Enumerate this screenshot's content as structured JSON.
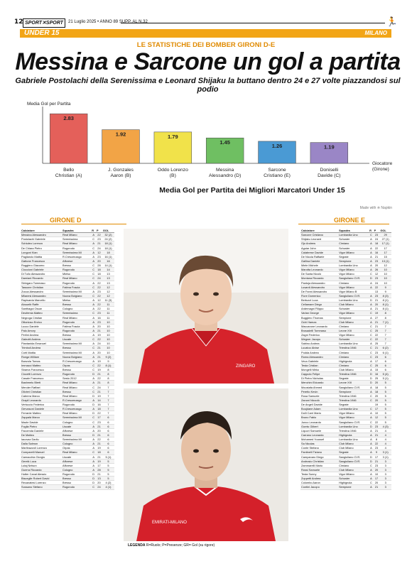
{
  "header": {
    "page_number": "12",
    "logo_text": "SPORT✕SPORT",
    "date_line": "21 Luglio 2025 • ANNO 89 SUPP. AL N.32",
    "section": "UNDER 15",
    "city": "MILANO"
  },
  "article": {
    "kicker": "LE STATISTICHE DEI BOMBER GIRONI D-E",
    "headline": "Messina e Sarcone un gol a partita",
    "subhead": "Gabriele Postolachi della Serenissima e Leonard Shijaku la buttano dentro 24 e 27 volte piazzandosi sul podio"
  },
  "chart_data": {
    "type": "bar",
    "title": "Media Gol per Partita dei Migliori Marcatori Under 15",
    "ylabel": "Media Gol per Partita",
    "xlabel": "Giocatore (Girone)",
    "categories": [
      "Bello Christian (A)",
      "J. Gonzales Aaron (B)",
      "Oddo Lorenzo (B)",
      "Messina Alessandro (D)",
      "Sarcone Cristiano (E)",
      "Doniselli Davide (C)"
    ],
    "values": [
      2.83,
      1.92,
      1.79,
      1.45,
      1.26,
      1.19
    ],
    "value_labels": [
      "2.83",
      "1.92",
      "1.79",
      "1.45",
      "1.26",
      "1.19"
    ],
    "colors": [
      "#e4605a",
      "#f2a446",
      "#f1e24a",
      "#6fbf62",
      "#4a9ad4",
      "#9a86c6"
    ],
    "ylim": [
      0,
      3
    ],
    "grid": false,
    "legend": "none",
    "credit": "Made with ❈ Napkin"
  },
  "girone_d": {
    "title": "GIRONE D",
    "headers": [
      "Calciatore",
      "Squadra",
      "R",
      "P",
      "GOL"
    ],
    "rows": [
      [
        "Messina Alessandro",
        "Real Milano",
        "A",
        "22",
        "32 (2)"
      ],
      [
        "Postolachi Gabriele",
        "Serenissima",
        "C",
        "23",
        "24 (2)"
      ],
      [
        "Schiuleo Lorenzo",
        "Real Milano",
        "A",
        "21",
        "18 (1)"
      ],
      [
        "De Chiara Pietro",
        "Rugorodo",
        "C",
        "24",
        "18 (1)"
      ],
      [
        "Longoni Kian",
        "Serenissima MI",
        "A",
        "12",
        "18"
      ],
      [
        "Pagliarolo Mattia",
        "R.Crescenzago",
        "A",
        "23",
        "16 (1)"
      ],
      [
        "Gattone Francesco",
        "Afforese",
        "A",
        "20",
        "16"
      ],
      [
        "Ruggiero Giacomo",
        "Bresso",
        "C",
        "28",
        "14 (1)"
      ],
      [
        "Cioccioni Gabriele",
        "Rugorodo",
        "C",
        "18",
        "14"
      ],
      [
        "Di Tullo Alessandro",
        "Mielso",
        "C",
        "18",
        "13"
      ],
      [
        "Damiani Riccardo",
        "Real Milano",
        "C",
        "24",
        "13"
      ],
      [
        "Stringaro Tommaso",
        "Rugorodo",
        "A",
        "22",
        "13"
      ],
      [
        "Tassone Christian",
        "Fatima Foscia",
        "C",
        "22",
        "12"
      ],
      [
        "Zocca Alessandro",
        "Serenissima MI",
        "A",
        "23",
        "12"
      ],
      [
        "Milanesi Alessandro",
        "Nuova Bolgiano",
        "C",
        "22",
        "12"
      ],
      [
        "Rapisarda Marcello",
        "Mielso",
        "A",
        "12",
        "11 (3)"
      ],
      [
        "Abouelb Raffe",
        "Bresso",
        "A",
        "22",
        "11"
      ],
      [
        "Santhagoi Oscar",
        "Cologno",
        "A",
        "22",
        "11"
      ],
      [
        "Deufemia Matteo",
        "Serenissima",
        "C",
        "23",
        "11"
      ],
      [
        "Negroga Cristian",
        "Real Milano",
        "A",
        "16",
        "11"
      ],
      [
        "Ottonioso Enrico",
        "Rugorodo",
        "A",
        "23",
        "10"
      ],
      [
        "Lucco Daniele",
        "Fatima Foscia",
        "A",
        "20",
        "10"
      ],
      [
        "Palo Amory",
        "Rugorodo",
        "A",
        "21",
        "10"
      ],
      [
        "Perlini Andrea",
        "Bresso",
        "A",
        "19",
        "10"
      ],
      [
        "Galeotti Andrea",
        "Liscate",
        "C",
        "22",
        "10"
      ],
      [
        "Piantanida Emanuel",
        "Serenissima MI",
        "A",
        "24",
        "10"
      ],
      [
        "Trimboli Andrea",
        "Bresso",
        "C",
        "21",
        "10"
      ],
      [
        "Corti Mattia",
        "Serenissima MI",
        "A",
        "20",
        "10"
      ],
      [
        "Ronga William",
        "Nuova Bolgiano",
        "A",
        "21",
        "9 (2)"
      ],
      [
        "Banzola Tomas",
        "R.Crescenzago",
        "A",
        "19",
        "9"
      ],
      [
        "Immacci Matteo",
        "Orpas",
        "C",
        "22",
        "8 (1)"
      ],
      [
        "Sbarna Francesco",
        "Bresso",
        "C",
        "19",
        "8"
      ],
      [
        "Ciocetti Lorenzo",
        "Rugorodo",
        "D",
        "21",
        "8"
      ],
      [
        "Casale Francesco",
        "Sesto 2012",
        "A",
        "22",
        "8"
      ],
      [
        "Bashmelu Blerti",
        "Real Milano",
        "A",
        "21",
        "8"
      ],
      [
        "Mender Raffaei",
        "Real Milano",
        "C",
        "24",
        "7"
      ],
      [
        "Olivieri Christian",
        "Bresso",
        "C",
        "21",
        "7"
      ],
      [
        "Cabrera Marco",
        "Real Milano",
        "D",
        "19",
        "7"
      ],
      [
        "Grapil Leonardo",
        "R.Crescenzago",
        "A",
        "14",
        "7"
      ],
      [
        "Vertuccio Federico",
        "Rugorodo",
        "D",
        "16",
        "7"
      ],
      [
        "Gervasoni Daniele",
        "R.Crescenzago",
        "A",
        "18",
        "7"
      ],
      [
        "Ferrante Matteo",
        "Real Milano",
        "D",
        "22",
        "7"
      ],
      [
        "Zappalà Marco",
        "Serenissima MI",
        "C",
        "17",
        "6"
      ],
      [
        "Mazle Davide",
        "Cologno",
        "C",
        "23",
        "6"
      ],
      [
        "Foglia Pietro",
        "Liscate",
        "A",
        "21",
        "6"
      ],
      [
        "Faccenda Daniele",
        "Afforese",
        "A",
        "20",
        "6"
      ],
      [
        "De Matteo",
        "Bresso",
        "D",
        "21",
        "6"
      ],
      [
        "Iacovaz Dariiu",
        "Serenissima MI",
        "A",
        "22",
        "6"
      ],
      [
        "Dalla Salmon",
        "Cologno",
        "A",
        "21",
        "6"
      ],
      [
        "Martinazzoli Lorenzo",
        "Orpas",
        "A",
        "19",
        "6"
      ],
      [
        "Comparelli Manuel",
        "Real Milano",
        "C",
        "18",
        "6"
      ],
      [
        "Camacchia Giorgio",
        "Liscate",
        "A",
        "21",
        "5 (1)"
      ],
      [
        "Gereik Luca",
        "Afforese",
        "A",
        "19",
        "5"
      ],
      [
        "Lutaj Nelson",
        "Afforese",
        "A",
        "17",
        "5"
      ],
      [
        "Guerra Riccardo",
        "Cologno",
        "A",
        "28",
        "5"
      ],
      [
        "Hutter Canal Alessio",
        "Rugorodo",
        "D",
        "21",
        "5"
      ],
      [
        "Bisceglie Robert David",
        "Bresso",
        "D",
        "13",
        "5"
      ],
      [
        "Recanatesi Lorenzo",
        "Bresso",
        "D",
        "20",
        "4 (2)"
      ],
      [
        "Sossano Stefano",
        "Rugorodo",
        "C",
        "24",
        "4 (1)"
      ]
    ]
  },
  "girone_e": {
    "title": "GIRONE E",
    "headers": [
      "Calciatore",
      "Squadra",
      "R",
      "P",
      "GOL"
    ],
    "rows": [
      [
        "Sarcone Cristiano",
        "Lombardia Uno",
        "C",
        "23",
        "29"
      ],
      [
        "Shijaku Leonard",
        "Schuster",
        "A",
        "24",
        "27 (1)"
      ],
      [
        "Ojo Andrew",
        "Cimiano",
        "A",
        "18",
        "17 (1)"
      ],
      [
        "Aguiar John",
        "Schuster",
        "A",
        "22",
        "17"
      ],
      [
        "Calabrese Davide",
        "Vigor Milano",
        "A",
        "16",
        "17"
      ],
      [
        "De Nicola Raffaele",
        "Segrate",
        "A",
        "21",
        "15"
      ],
      [
        "Gallina Daniele",
        "Sempione",
        "A",
        "23",
        "13 (1)"
      ],
      [
        "Miele Michele",
        "Lombardia Uno",
        "A",
        "20",
        "12"
      ],
      [
        "Marotta Leonardo",
        "Vigor Milano",
        "A",
        "26",
        "10"
      ],
      [
        "De Santa Nicolò",
        "Vigor Milano",
        "C",
        "12",
        "10"
      ],
      [
        "Montana Riccardo",
        "Sangiuliano CVS",
        "D",
        "23",
        "10"
      ],
      [
        "Pantoja Alessandro",
        "Cimiano",
        "A",
        "24",
        "10"
      ],
      [
        "Lusardi Alessandro",
        "Vigor Milano",
        "A",
        "22",
        "9"
      ],
      [
        "De Fanni Alessandro",
        "Vigor Milano B",
        "",
        "13",
        "9"
      ],
      [
        "Fiore Domenico",
        "Sangiuliano CVS",
        "A",
        "23",
        "8 (3)"
      ],
      [
        "Bertuzzi Luca",
        "Lombardia Uno",
        "D",
        "21",
        "8 (1)"
      ],
      [
        "Cellamare Diego",
        "Club Milano",
        "A",
        "20",
        "8 (1)"
      ],
      [
        "Ardemagni Filippo",
        "Schuster",
        "A",
        "21",
        "8 (1)"
      ],
      [
        "Varlan George",
        "Vigor Milano",
        "C",
        "19",
        "8"
      ],
      [
        "Buggiero Thomas",
        "Sempione",
        "A",
        "27",
        "8"
      ],
      [
        "Ochi Hamza",
        "Club Milano",
        "A",
        "21",
        "7 (1)"
      ],
      [
        "Maccarone Leonardo",
        "Cimiano",
        "C",
        "21",
        "7"
      ],
      [
        "Brusadelli Tommaso",
        "Leone XIII",
        "C",
        "25",
        "7"
      ],
      [
        "Zagni Federico",
        "Vigor Milano",
        "C",
        "22",
        "7"
      ],
      [
        "Wegner Jacopo",
        "Schuster",
        "C",
        "22",
        "7"
      ],
      [
        "Sabino Andrea",
        "Lombardia Uno",
        "A",
        "25",
        "7"
      ],
      [
        "Lucatoo Alvise",
        "Triestina 1946",
        "C",
        "21",
        "6 (2)"
      ],
      [
        "Podda Andrea",
        "Cimiano",
        "C",
        "23",
        "6 (1)"
      ],
      [
        "Roma Alessandro",
        "Cimiano",
        "C",
        "23",
        "6"
      ],
      [
        "Veca Gabriele",
        "Highignola",
        "A",
        "17",
        "6"
      ],
      [
        "Testa Cristian",
        "Cimiano",
        "C",
        "25",
        "6"
      ],
      [
        "Mongelli Mirko",
        "Club Milano",
        "A",
        "15",
        "6"
      ],
      [
        "Capputo Felipe",
        "Triestina 1946",
        "D",
        "16",
        "5 (4)"
      ],
      [
        "Di Pietro Nicholas",
        "Segrate",
        "D",
        "25",
        "5 (1)"
      ],
      [
        "Menchini Edoardo",
        "Leone XIII",
        "D",
        "20",
        "5"
      ],
      [
        "Moustafa Ahmed",
        "Sangiuliano CVS",
        "A",
        "18",
        "5"
      ],
      [
        "Peretto Kevin",
        "Sempione",
        "A",
        "18",
        "5"
      ],
      [
        "Rosa Samuele",
        "Triestina 1946",
        "C",
        "20",
        "5"
      ],
      [
        "Zanoni Niccolò",
        "Triestina 1946",
        "C",
        "20",
        "5"
      ],
      [
        "De Angeli Davide",
        "Segrate",
        "",
        "19",
        "5"
      ],
      [
        "Boujdane Adam",
        "Lombardia Uno",
        "C",
        "17",
        "5"
      ],
      [
        "Dolli Carri Mario",
        "Vigor Milano",
        "A",
        "10",
        "5"
      ],
      [
        "Bruno Fabio",
        "Vigor Milano",
        "A",
        "12",
        "5"
      ],
      [
        "Junco Leonardo",
        "Sangiuliano CVS",
        "C",
        "22",
        "5"
      ],
      [
        "Gomis Gilbert",
        "Lombardia Uno",
        "D",
        "23",
        "4 (3)"
      ],
      [
        "Liquori Samuele",
        "Triestina 1946",
        "A",
        "21",
        "4"
      ],
      [
        "Carrano Leonardo",
        "Highignola",
        "A",
        "21",
        "4"
      ],
      [
        "Mohamed Youssef",
        "Lombardia Uno",
        "A",
        "8",
        "4"
      ],
      [
        "Sa Nicolas",
        "Club Milano",
        "A",
        "22",
        "4"
      ],
      [
        "Conte Stefano",
        "Club Milano",
        "A",
        "23",
        "4"
      ],
      [
        "Fantinelli Tiziano",
        "Segrate",
        "A",
        "9",
        "3 (1)"
      ],
      [
        "Campanaro Diego",
        "Sangiuliano CVS",
        "D",
        "17",
        "3 (1)"
      ],
      [
        "Androsio Christian",
        "Sangiuliano CVS",
        "D",
        "21",
        "3"
      ],
      [
        "Zammarelli Mario",
        "Cimiano",
        "C",
        "23",
        "3"
      ],
      [
        "Rossi Samuele",
        "Club Milano",
        "A",
        "20",
        "3"
      ],
      [
        "Testa Sunny",
        "Vigor Milano",
        "A",
        "10",
        "3"
      ],
      [
        "Zoppetti Andrea",
        "Schuster",
        "A",
        "17",
        "3"
      ],
      [
        "Colombo Aaron",
        "Highignola",
        "C",
        "20",
        "3"
      ],
      [
        "Contini Jacopo",
        "Sempione",
        "A",
        "21",
        "3"
      ]
    ]
  },
  "photos": {
    "shirt_text_1": "ZINGARO",
    "shirt_text_2": "EMIRATI-MILANO"
  },
  "legend": {
    "label": "LEGENDA",
    "text": "R=Ruolo; P=Presenze; GR= Gol (su rigore)"
  }
}
